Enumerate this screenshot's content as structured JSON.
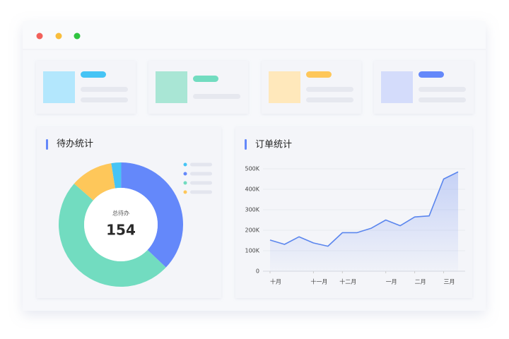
{
  "panels": [
    {
      "title": "待办统计",
      "chart_data": {
        "type": "donut",
        "center_label": "总待办",
        "center_value": 154,
        "values": [
          4,
          57,
          76,
          17
        ],
        "colors": [
          "#46c4f5",
          "#6488fa",
          "#72dcc0",
          "#fec75a"
        ]
      }
    },
    {
      "title": "订单统计",
      "chart_data": {
        "type": "line",
        "categories": [
          "十月",
          null,
          null,
          "十一月",
          null,
          "十二月",
          null,
          null,
          "一月",
          null,
          "二月",
          null,
          "三月",
          null
        ],
        "series": [
          {
            "color": "#5b86ee",
            "values": [
              152000,
              131000,
              168000,
              138000,
              122000,
              188000,
              188000,
              210000,
              250000,
              222000,
              265000,
              270000,
              450000,
              485000
            ]
          }
        ],
        "ylim": [
          0,
          500000
        ],
        "yticks": [
          0,
          {
            "value": 100000,
            "label": "100K"
          },
          {
            "value": 200000,
            "label": "200K"
          },
          {
            "value": 300000,
            "label": "300K"
          },
          {
            "value": 400000,
            "label": "400K"
          },
          {
            "value": 500000,
            "label": "500K"
          }
        ],
        "grid": true
      }
    }
  ]
}
